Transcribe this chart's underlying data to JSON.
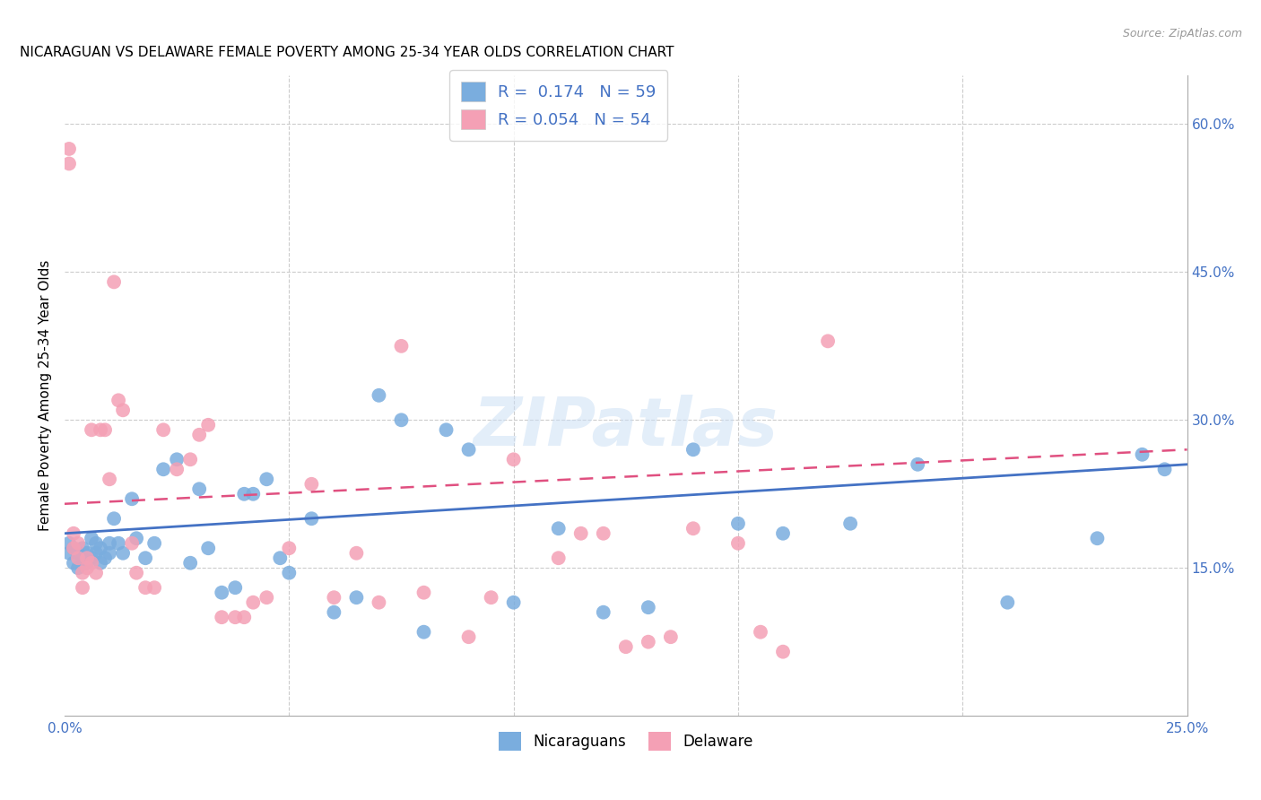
{
  "title": "NICARAGUAN VS DELAWARE FEMALE POVERTY AMONG 25-34 YEAR OLDS CORRELATION CHART",
  "source": "Source: ZipAtlas.com",
  "ylabel": "Female Poverty Among 25-34 Year Olds",
  "xlim": [
    0.0,
    0.25
  ],
  "ylim": [
    0.0,
    0.65
  ],
  "xticks": [
    0.0,
    0.05,
    0.1,
    0.15,
    0.2,
    0.25
  ],
  "xticklabels": [
    "0.0%",
    "",
    "",
    "",
    "",
    "25.0%"
  ],
  "yticks_right": [
    0.15,
    0.3,
    0.45,
    0.6
  ],
  "ytick_right_labels": [
    "15.0%",
    "30.0%",
    "45.0%",
    "60.0%"
  ],
  "blue_color": "#7aadde",
  "pink_color": "#f4a0b5",
  "blue_line_color": "#4472c4",
  "pink_line_color": "#e05080",
  "legend_R_blue": "0.174",
  "legend_N_blue": "59",
  "legend_R_pink": "0.054",
  "legend_N_pink": "54",
  "legend_label_blue": "Nicaraguans",
  "legend_label_pink": "Delaware",
  "watermark": "ZIPatlas",
  "background_color": "#ffffff",
  "blue_scatter_x": [
    0.001,
    0.001,
    0.002,
    0.002,
    0.003,
    0.003,
    0.004,
    0.004,
    0.005,
    0.005,
    0.006,
    0.006,
    0.007,
    0.007,
    0.008,
    0.008,
    0.009,
    0.01,
    0.01,
    0.011,
    0.012,
    0.013,
    0.015,
    0.016,
    0.018,
    0.02,
    0.022,
    0.025,
    0.028,
    0.03,
    0.032,
    0.035,
    0.038,
    0.04,
    0.042,
    0.045,
    0.048,
    0.05,
    0.055,
    0.06,
    0.065,
    0.07,
    0.075,
    0.08,
    0.085,
    0.09,
    0.1,
    0.11,
    0.12,
    0.13,
    0.14,
    0.15,
    0.16,
    0.175,
    0.19,
    0.21,
    0.23,
    0.24,
    0.245
  ],
  "blue_scatter_y": [
    0.175,
    0.165,
    0.17,
    0.155,
    0.165,
    0.15,
    0.17,
    0.16,
    0.165,
    0.155,
    0.18,
    0.16,
    0.175,
    0.165,
    0.155,
    0.17,
    0.16,
    0.175,
    0.165,
    0.2,
    0.175,
    0.165,
    0.22,
    0.18,
    0.16,
    0.175,
    0.25,
    0.26,
    0.155,
    0.23,
    0.17,
    0.125,
    0.13,
    0.225,
    0.225,
    0.24,
    0.16,
    0.145,
    0.2,
    0.105,
    0.12,
    0.325,
    0.3,
    0.085,
    0.29,
    0.27,
    0.115,
    0.19,
    0.105,
    0.11,
    0.27,
    0.195,
    0.185,
    0.195,
    0.255,
    0.115,
    0.18,
    0.265,
    0.25
  ],
  "pink_scatter_x": [
    0.001,
    0.001,
    0.002,
    0.002,
    0.003,
    0.003,
    0.004,
    0.004,
    0.005,
    0.005,
    0.006,
    0.006,
    0.007,
    0.008,
    0.009,
    0.01,
    0.011,
    0.012,
    0.013,
    0.015,
    0.016,
    0.018,
    0.02,
    0.022,
    0.025,
    0.028,
    0.03,
    0.032,
    0.035,
    0.038,
    0.04,
    0.042,
    0.045,
    0.05,
    0.055,
    0.06,
    0.065,
    0.07,
    0.075,
    0.08,
    0.09,
    0.095,
    0.1,
    0.11,
    0.115,
    0.12,
    0.125,
    0.13,
    0.135,
    0.14,
    0.15,
    0.155,
    0.16,
    0.17
  ],
  "pink_scatter_y": [
    0.575,
    0.56,
    0.185,
    0.17,
    0.175,
    0.16,
    0.145,
    0.13,
    0.16,
    0.15,
    0.29,
    0.155,
    0.145,
    0.29,
    0.29,
    0.24,
    0.44,
    0.32,
    0.31,
    0.175,
    0.145,
    0.13,
    0.13,
    0.29,
    0.25,
    0.26,
    0.285,
    0.295,
    0.1,
    0.1,
    0.1,
    0.115,
    0.12,
    0.17,
    0.235,
    0.12,
    0.165,
    0.115,
    0.375,
    0.125,
    0.08,
    0.12,
    0.26,
    0.16,
    0.185,
    0.185,
    0.07,
    0.075,
    0.08,
    0.19,
    0.175,
    0.085,
    0.065,
    0.38
  ]
}
